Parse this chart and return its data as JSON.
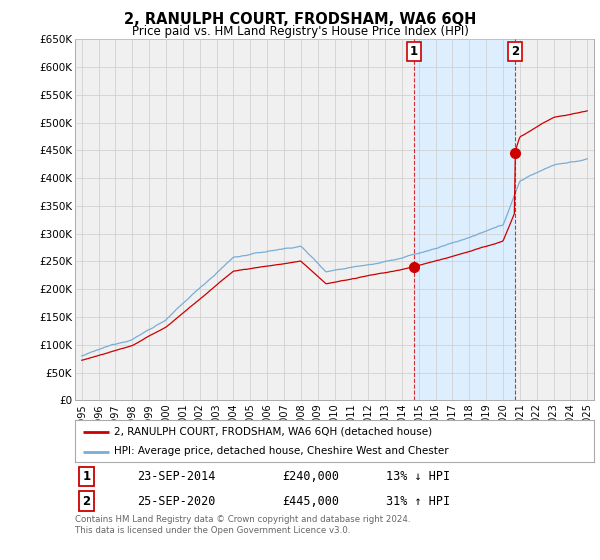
{
  "title": "2, RANULPH COURT, FRODSHAM, WA6 6QH",
  "subtitle": "Price paid vs. HM Land Registry's House Price Index (HPI)",
  "ylabel_ticks": [
    "£0",
    "£50K",
    "£100K",
    "£150K",
    "£200K",
    "£250K",
    "£300K",
    "£350K",
    "£400K",
    "£450K",
    "£500K",
    "£550K",
    "£600K",
    "£650K"
  ],
  "ytick_values": [
    0,
    50000,
    100000,
    150000,
    200000,
    250000,
    300000,
    350000,
    400000,
    450000,
    500000,
    550000,
    600000,
    650000
  ],
  "red_line_color": "#cc0000",
  "blue_line_color": "#7aadd4",
  "shade_color": "#ddeeff",
  "grid_color": "#cccccc",
  "background_color": "#ffffff",
  "plot_bg_color": "#f0f0f0",
  "transaction1_year": 2014.708,
  "transaction1_price": 240000,
  "transaction2_year": 2020.708,
  "transaction2_price": 445000,
  "transaction1_date": "23-SEP-2014",
  "transaction1_pct": "13% ↓ HPI",
  "transaction2_date": "25-SEP-2020",
  "transaction2_pct": "31% ↑ HPI",
  "legend_red": "2, RANULPH COURT, FRODSHAM, WA6 6QH (detached house)",
  "legend_blue": "HPI: Average price, detached house, Cheshire West and Chester",
  "footer": "Contains HM Land Registry data © Crown copyright and database right 2024.\nThis data is licensed under the Open Government Licence v3.0.",
  "x_start_year": 1995,
  "x_end_year": 2025
}
